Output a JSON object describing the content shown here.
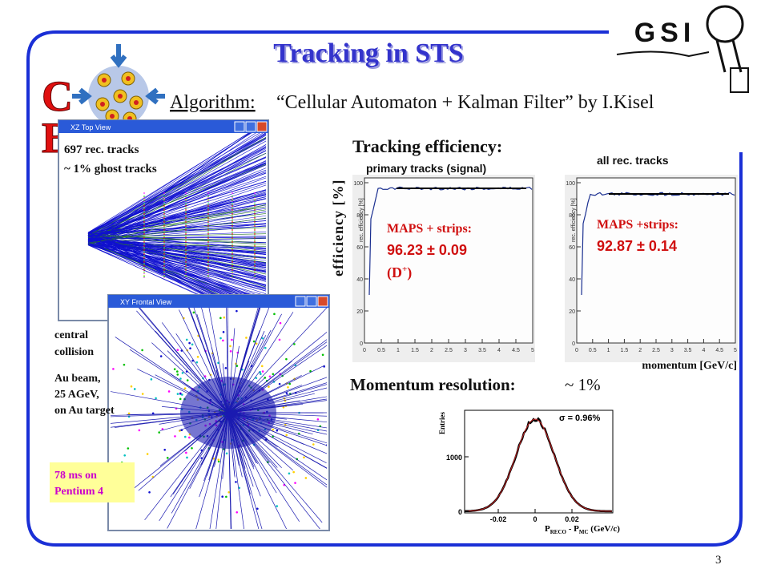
{
  "slide": {
    "title": "Tracking in STS",
    "algorithm_label": "Algorithm:",
    "algorithm_text": "“Cellular Automaton + Kalman Filter” by I.Kisel",
    "logo": {
      "cbm": [
        "C",
        "B"
      ],
      "gsi": "GSI"
    },
    "page_number": "3"
  },
  "top_view": {
    "window_title": "XZ Top View",
    "lines": [
      "697 rec. tracks",
      "~ 1% ghost tracks"
    ]
  },
  "frontal_view": {
    "window_title": "XY Frontal View"
  },
  "collision": {
    "lines": [
      "central",
      "collision"
    ]
  },
  "beam": {
    "lines": [
      "Au beam,",
      "25 AGeV,",
      "on Au target"
    ]
  },
  "timing": {
    "lines": [
      "78 ms on",
      "Pentium 4"
    ]
  },
  "efficiency": {
    "heading": "Tracking efficiency:",
    "y_label": "efficiency [%]",
    "x_label": "momentum [GeV/c]",
    "panels": [
      {
        "caption": "primary tracks (signal)",
        "axis_label": "rec. efficiency [%]",
        "result_label": "MAPS + strips:",
        "result": "96.23 ± 0.09",
        "note": {
          "open": "(D",
          "sup": "+",
          "close": ")"
        }
      },
      {
        "caption": "all rec. tracks",
        "axis_label": "rec. efficiency [%]",
        "result_label": "MAPS +strips:",
        "result": "92.87 ± 0.14"
      }
    ],
    "xticks": [
      "0",
      "0.5",
      "1",
      "1.5",
      "2",
      "2.5",
      "3",
      "3.5",
      "4",
      "4.5",
      "5"
    ],
    "yticks": [
      "0",
      "20",
      "40",
      "60",
      "80",
      "100"
    ]
  },
  "resolution": {
    "heading": "Momentum resolution:",
    "value": "~ 1%",
    "sigma": "σ = 0.96%",
    "y_label": "Entries",
    "yticks": [
      "0",
      "1000"
    ],
    "xticks": [
      "-0.02",
      "0",
      "0.02"
    ],
    "x_label": {
      "p1": "P",
      "s1": "RECO",
      "p2": " - P",
      "s2": "MC",
      "rest": " (GeV/c)"
    }
  }
}
